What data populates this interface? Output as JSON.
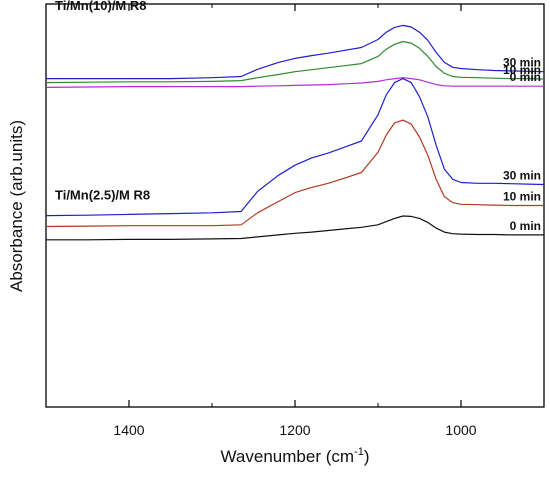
{
  "chart_data": {
    "type": "line",
    "xlabel": "Wavenumber (cm",
    "xlabel_sup": "-1",
    "xlabel_close": ")",
    "ylabel": "Absorbance (arb.units)",
    "xlim": [
      1500,
      900
    ],
    "x_reversed": true,
    "ylim": [
      0,
      10
    ],
    "y_ticks_shown": false,
    "x_ticks": [
      "1400",
      "1200",
      "1000"
    ],
    "x_tick_values": [
      1400,
      1200,
      1000
    ],
    "grid": false,
    "groups": [
      {
        "label": "Ti/Mn(10)/M R8"
      },
      {
        "label": "Ti/Mn(2.5)/M R8"
      }
    ],
    "x": [
      1500,
      1450,
      1400,
      1350,
      1300,
      1265,
      1245,
      1220,
      1200,
      1180,
      1160,
      1140,
      1120,
      1100,
      1090,
      1080,
      1070,
      1060,
      1050,
      1040,
      1030,
      1020,
      1010,
      1000,
      980,
      960,
      940,
      920,
      900
    ],
    "series": [
      {
        "group": 0,
        "name": "30 min",
        "color": "#1f1fcf",
        "values": [
          8.15,
          8.15,
          8.15,
          8.15,
          8.17,
          8.2,
          8.38,
          8.55,
          8.65,
          8.72,
          8.78,
          8.85,
          8.92,
          9.12,
          9.3,
          9.42,
          9.47,
          9.43,
          9.3,
          9.1,
          8.8,
          8.55,
          8.43,
          8.4,
          8.37,
          8.35,
          8.34,
          8.33,
          8.32
        ]
      },
      {
        "group": 0,
        "name": "10 min",
        "color": "#2e8b2e",
        "values": [
          8.05,
          8.06,
          8.07,
          8.07,
          8.08,
          8.1,
          8.17,
          8.25,
          8.32,
          8.37,
          8.42,
          8.47,
          8.52,
          8.7,
          8.88,
          9.0,
          9.07,
          9.03,
          8.9,
          8.7,
          8.45,
          8.28,
          8.2,
          8.18,
          8.17,
          8.16,
          8.15,
          8.15,
          8.14
        ]
      },
      {
        "group": 0,
        "name": "0 min",
        "color": "#b030d0",
        "values": [
          7.93,
          7.94,
          7.95,
          7.95,
          7.95,
          7.95,
          7.96,
          7.97,
          7.98,
          7.99,
          8.0,
          8.02,
          8.04,
          8.08,
          8.12,
          8.15,
          8.17,
          8.15,
          8.12,
          8.06,
          8.0,
          7.97,
          7.96,
          7.96,
          7.96,
          7.96,
          7.96,
          7.96,
          7.96
        ]
      },
      {
        "group": 1,
        "name": "30 min",
        "color": "#1f1fcf",
        "values": [
          4.75,
          4.76,
          4.78,
          4.8,
          4.82,
          4.85,
          5.35,
          5.75,
          6.0,
          6.18,
          6.3,
          6.45,
          6.6,
          7.25,
          7.75,
          8.05,
          8.15,
          8.05,
          7.7,
          7.2,
          6.5,
          5.9,
          5.65,
          5.57,
          5.55,
          5.55,
          5.54,
          5.53,
          5.52
        ]
      },
      {
        "group": 1,
        "name": "10 min",
        "color": "#b03a22",
        "values": [
          4.48,
          4.49,
          4.5,
          4.5,
          4.5,
          4.52,
          4.82,
          5.1,
          5.32,
          5.45,
          5.55,
          5.68,
          5.82,
          6.32,
          6.75,
          7.05,
          7.12,
          7.02,
          6.7,
          6.25,
          5.65,
          5.22,
          5.07,
          5.03,
          5.02,
          5.01,
          5.0,
          5.0,
          5.0
        ]
      },
      {
        "group": 1,
        "name": "0 min",
        "color": "#111111",
        "values": [
          4.15,
          4.15,
          4.16,
          4.16,
          4.17,
          4.18,
          4.22,
          4.27,
          4.31,
          4.34,
          4.38,
          4.42,
          4.46,
          4.52,
          4.6,
          4.68,
          4.74,
          4.73,
          4.68,
          4.58,
          4.44,
          4.34,
          4.3,
          4.29,
          4.28,
          4.28,
          4.27,
          4.27,
          4.27
        ]
      }
    ]
  }
}
